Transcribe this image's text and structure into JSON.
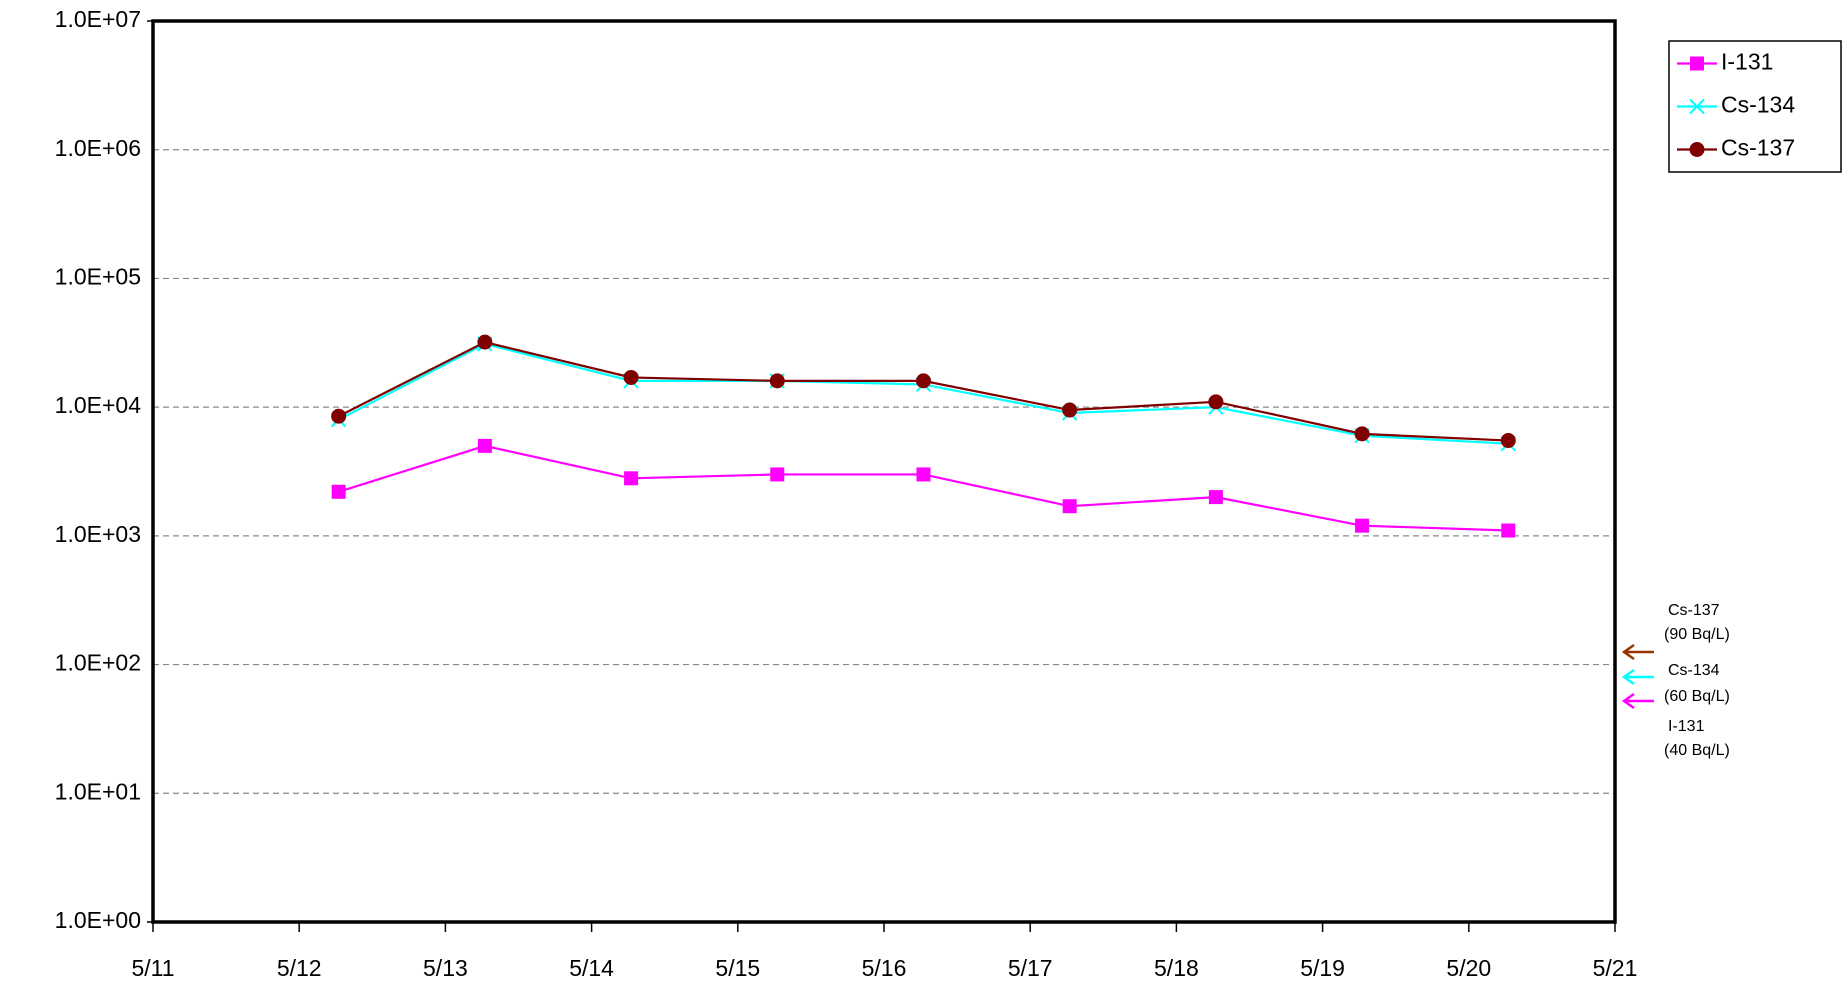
{
  "chart_data": {
    "type": "line",
    "x": [
      12.27,
      13.27,
      14.27,
      15.27,
      16.27,
      17.27,
      18.27,
      19.27,
      20.27
    ],
    "xlim": [
      11,
      21
    ],
    "xticks": [
      {
        "value": 11,
        "label": "5/11"
      },
      {
        "value": 12,
        "label": "5/12"
      },
      {
        "value": 13,
        "label": "5/13"
      },
      {
        "value": 14,
        "label": "5/14"
      },
      {
        "value": 15,
        "label": "5/15"
      },
      {
        "value": 16,
        "label": "5/16"
      },
      {
        "value": 17,
        "label": "5/17"
      },
      {
        "value": 18,
        "label": "5/18"
      },
      {
        "value": 19,
        "label": "5/19"
      },
      {
        "value": 20,
        "label": "5/20"
      },
      {
        "value": 21,
        "label": "5/21"
      }
    ],
    "ylim": [
      1,
      10000000
    ],
    "yticks": [
      {
        "value": 1,
        "label": "1.0E+00"
      },
      {
        "value": 10,
        "label": "1.0E+01"
      },
      {
        "value": 100,
        "label": "1.0E+02"
      },
      {
        "value": 1000,
        "label": "1.0E+03"
      },
      {
        "value": 10000,
        "label": "1.0E+04"
      },
      {
        "value": 100000,
        "label": "1.0E+05"
      },
      {
        "value": 1000000,
        "label": "1.0E+06"
      },
      {
        "value": 10000000,
        "label": "1.0E+07"
      }
    ],
    "log_scale": true,
    "grid": true,
    "legend": "top-right",
    "series": [
      {
        "name": "I-131",
        "color": "#ff00ff",
        "marker": "square",
        "values": [
          2200,
          5000,
          2800,
          3000,
          3000,
          1700,
          2000,
          1200,
          1100
        ]
      },
      {
        "name": "Cs-134",
        "color": "#00ffff",
        "marker": "x",
        "values": [
          8000,
          31000,
          16000,
          16000,
          15000,
          9000,
          10000,
          6000,
          5200
        ]
      },
      {
        "name": "Cs-137",
        "color": "#800000",
        "marker": "circle",
        "values": [
          8500,
          32000,
          17000,
          16000,
          16000,
          9500,
          11000,
          6200,
          5500
        ]
      }
    ],
    "annotations": [
      "Cs-137",
      "(90  Bq/L)",
      "Cs-134",
      "(60  Bq/L)",
      "I-131",
      "(40  Bq/L)"
    ]
  }
}
